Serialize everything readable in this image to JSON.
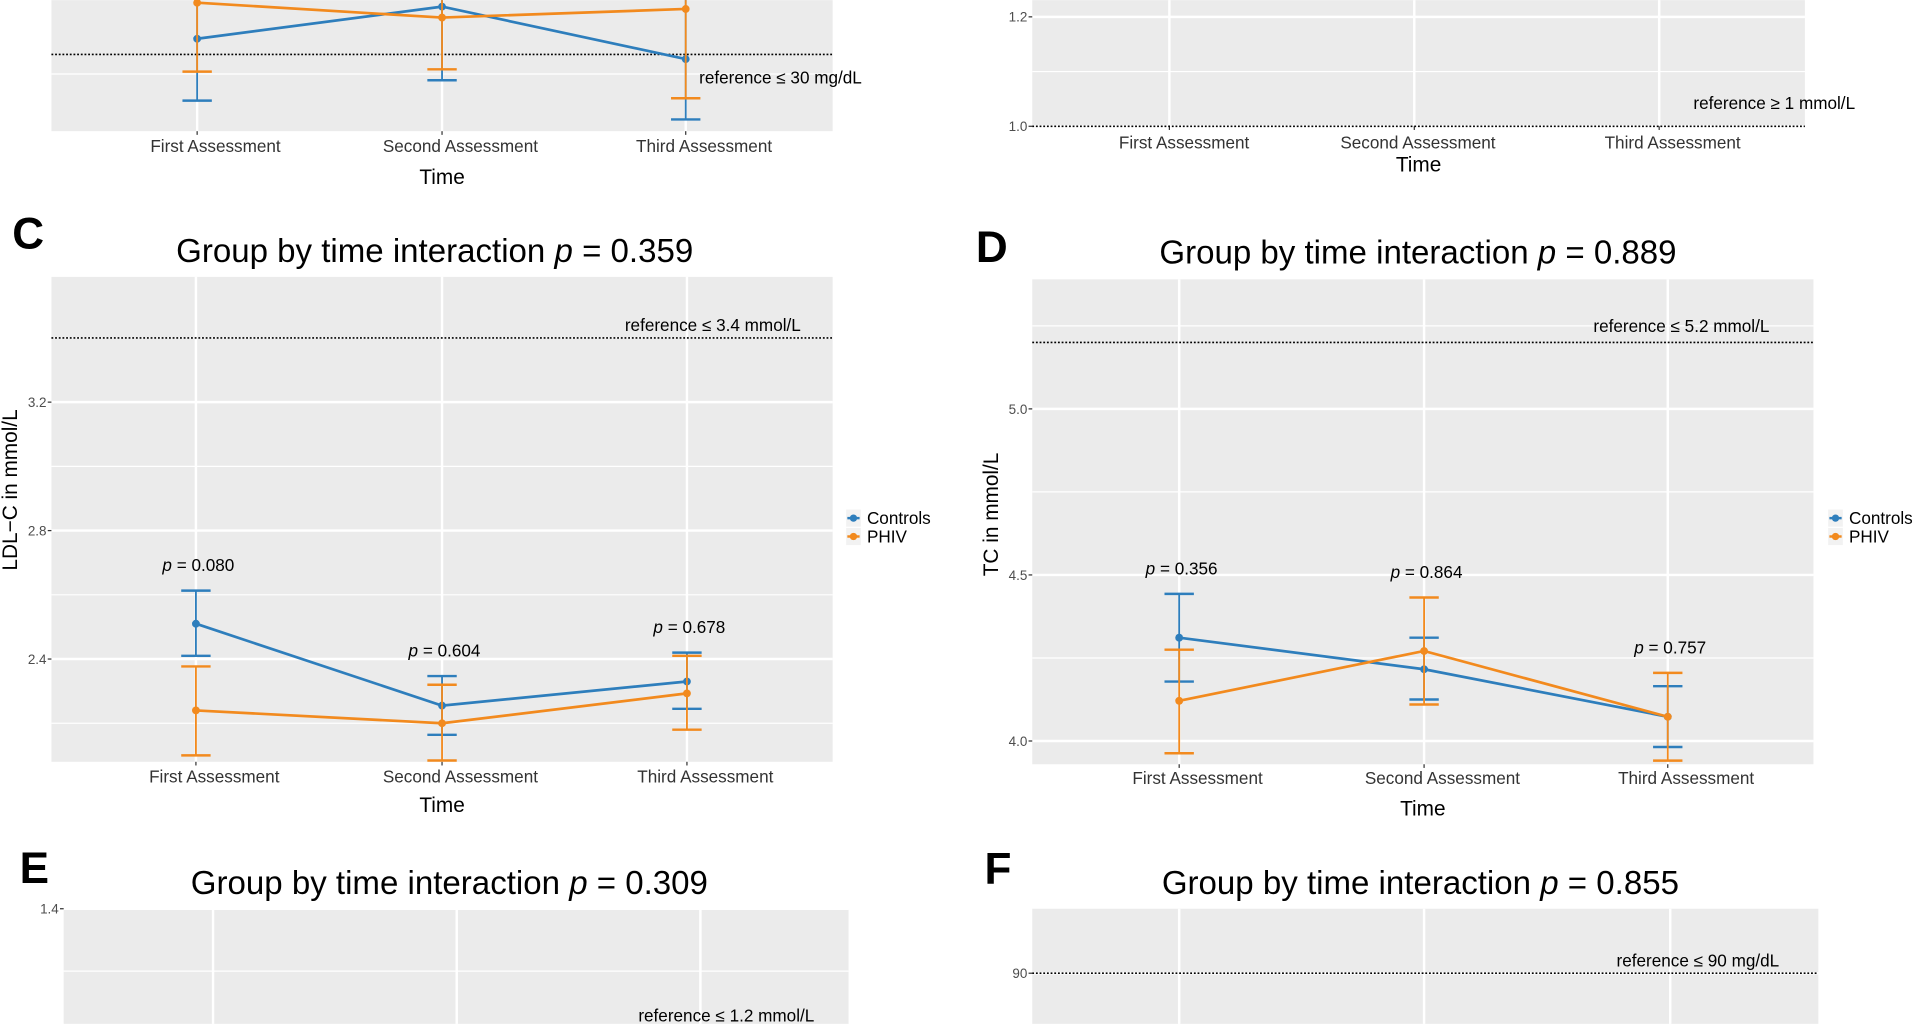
{
  "colors": {
    "controls": "#2e7ebc",
    "phiv": "#f28a1e",
    "panel_bg": "#ebebeb",
    "grid": "#ffffff"
  },
  "legend": {
    "items": [
      "Controls",
      "PHIV"
    ]
  },
  "chart_data": [
    {
      "panel": "A",
      "letter": "",
      "type": "line",
      "title_prefix": "",
      "title_stat": "",
      "title_value": "",
      "xlabel": "Time",
      "ylabel": "",
      "categories": [
        "First Assessment",
        "Second Assessment",
        "Third Assessment"
      ],
      "ylim": [
        20.2,
        46.3
      ],
      "yticks": [],
      "ygrid_minor": [
        27.5
      ],
      "reference": {
        "value": 30,
        "label": "reference ≤ 30 mg/dL"
      },
      "p_stat": "",
      "p_labels": [],
      "series": [
        {
          "name": "Controls",
          "means": [
            32.0,
            36.1,
            29.4
          ],
          "lower": [
            24.1,
            26.7,
            21.7
          ],
          "upper": [
            null,
            null,
            null
          ]
        },
        {
          "name": "PHIV",
          "means": [
            36.6,
            34.7,
            35.8
          ],
          "lower": [
            27.8,
            28.1,
            24.4
          ],
          "upper": [
            null,
            null,
            null
          ]
        }
      ],
      "legend_visible": false,
      "grid": true
    },
    {
      "panel": "B",
      "letter": "",
      "type": "line",
      "title_prefix": "",
      "title_stat": "",
      "title_value": "",
      "xlabel": "Time",
      "ylabel": "",
      "categories": [
        "First Assessment",
        "Second Assessment",
        "Third Assessment"
      ],
      "ylim": [
        1.0,
        1.32
      ],
      "yticks": [
        1.0,
        1.2
      ],
      "ytick_labels": [
        "1.0",
        "1.2"
      ],
      "ygrid_minor": [
        1.1,
        1.3
      ],
      "reference": {
        "value": 1.0,
        "label": "reference ≥ 1 mmol/L"
      },
      "p_stat": "",
      "p_labels": [],
      "series": [],
      "legend_visible": false,
      "grid": true
    },
    {
      "panel": "C",
      "letter": "C",
      "type": "line",
      "title_prefix": "Group by time interaction ",
      "title_stat": "p",
      "title_value": " = 0.359",
      "xlabel": "Time",
      "ylabel": "LDL−C in mmol/L",
      "categories": [
        "First Assessment",
        "Second Assessment",
        "Third Assessment"
      ],
      "ylim": [
        2.08,
        3.59
      ],
      "yticks": [
        2.4,
        2.8,
        3.2
      ],
      "ytick_labels": [
        "2.4",
        "2.8",
        "3.2"
      ],
      "ygrid_minor": [
        2.2,
        2.6,
        3.0,
        3.4
      ],
      "reference": {
        "value": 3.4,
        "label": "reference ≤ 3.4 mmol/L"
      },
      "p_stat": "p",
      "p_labels": [
        " = 0.080",
        " = 0.604",
        " = 0.678"
      ],
      "series": [
        {
          "name": "Controls",
          "means": [
            2.51,
            2.255,
            2.33
          ],
          "lower": [
            2.41,
            2.164,
            2.245
          ],
          "upper": [
            2.613,
            2.347,
            2.42
          ]
        },
        {
          "name": "PHIV",
          "means": [
            2.24,
            2.2,
            2.293
          ],
          "lower": [
            2.1,
            2.084,
            2.18
          ],
          "upper": [
            2.377,
            2.32,
            2.41
          ]
        }
      ],
      "legend_visible": true,
      "grid": true
    },
    {
      "panel": "D",
      "letter": "D",
      "type": "line",
      "title_prefix": "Group by time interaction ",
      "title_stat": "p",
      "title_value": " = 0.889",
      "xlabel": "Time",
      "ylabel": "TC in mmol/L",
      "categories": [
        "First Assessment",
        "Second Assessment",
        "Third Assessment"
      ],
      "ylim": [
        3.93,
        5.39
      ],
      "yticks": [
        4.0,
        4.5,
        5.0
      ],
      "ytick_labels": [
        "4.0",
        "4.5",
        "5.0"
      ],
      "ygrid_minor": [
        4.25,
        4.75,
        5.25
      ],
      "reference": {
        "value": 5.2,
        "label": "reference ≤ 5.2 mmol/L"
      },
      "p_stat": "p",
      "p_labels": [
        " = 0.356",
        " = 0.864",
        " = 0.757"
      ],
      "series": [
        {
          "name": "Controls",
          "means": [
            4.311,
            4.216,
            4.073
          ],
          "lower": [
            4.179,
            4.125,
            3.982
          ],
          "upper": [
            4.443,
            4.311,
            4.165
          ]
        },
        {
          "name": "PHIV",
          "means": [
            4.121,
            4.271,
            4.073
          ],
          "lower": [
            3.963,
            4.11,
            3.941
          ],
          "upper": [
            4.275,
            4.432,
            4.205
          ]
        }
      ],
      "legend_visible": true,
      "grid": true
    },
    {
      "panel": "E",
      "letter": "E",
      "type": "line",
      "title_prefix": "Group by time interaction ",
      "title_stat": "p",
      "title_value": " = 0.309",
      "xlabel": "",
      "ylabel": "",
      "categories": [],
      "ylim": [
        1.09,
        1.4
      ],
      "yticks": [
        1.4
      ],
      "ytick_labels": [
        "1.4"
      ],
      "ygrid_minor": [
        1.3
      ],
      "reference": {
        "value": 1.2,
        "label": "reference ≤ 1.2 mmol/L"
      },
      "p_stat": "",
      "p_labels": [],
      "series": [],
      "legend_visible": false,
      "grid": true
    },
    {
      "panel": "F",
      "letter": "F",
      "type": "line",
      "title_prefix": "Group by time interaction ",
      "title_stat": "p",
      "title_value": " = 0.855",
      "xlabel": "",
      "ylabel": "",
      "categories": [],
      "ylim": [
        70,
        100
      ],
      "yticks": [
        90
      ],
      "ytick_labels": [
        "90"
      ],
      "ygrid_minor": [],
      "reference": {
        "value": 90,
        "label": "reference ≤ 90 mg/dL"
      },
      "p_stat": "",
      "p_labels": [],
      "series": [],
      "legend_visible": false,
      "grid": true
    }
  ]
}
